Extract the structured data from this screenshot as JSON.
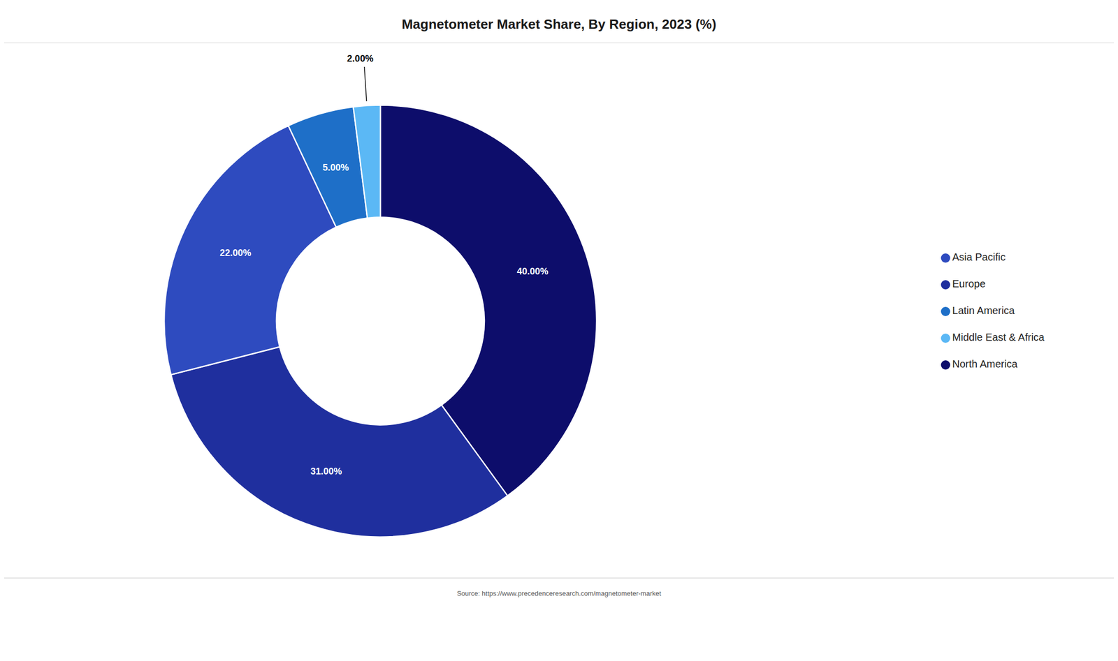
{
  "chart_data": {
    "type": "pie",
    "title": "Magnetometer Market Share, By Region, 2023 (%)",
    "categories": [
      "North America",
      "Europe",
      "Asia Pacific",
      "Latin America",
      "Middle East & Africa"
    ],
    "values": [
      40.0,
      31.0,
      22.0,
      5.0,
      2.0
    ],
    "value_labels": [
      "40.00%",
      "31.00%",
      "22.00%",
      "5.00%",
      "2.00%"
    ],
    "colors": [
      "#0d0d6b",
      "#1f2f9e",
      "#2e4bbf",
      "#1e6fc8",
      "#5bb8f5"
    ],
    "legend": "right",
    "data_labels": true,
    "annotations": [
      "Source: https://www.precedenceresearch.com/magnetometer-market"
    ]
  }
}
